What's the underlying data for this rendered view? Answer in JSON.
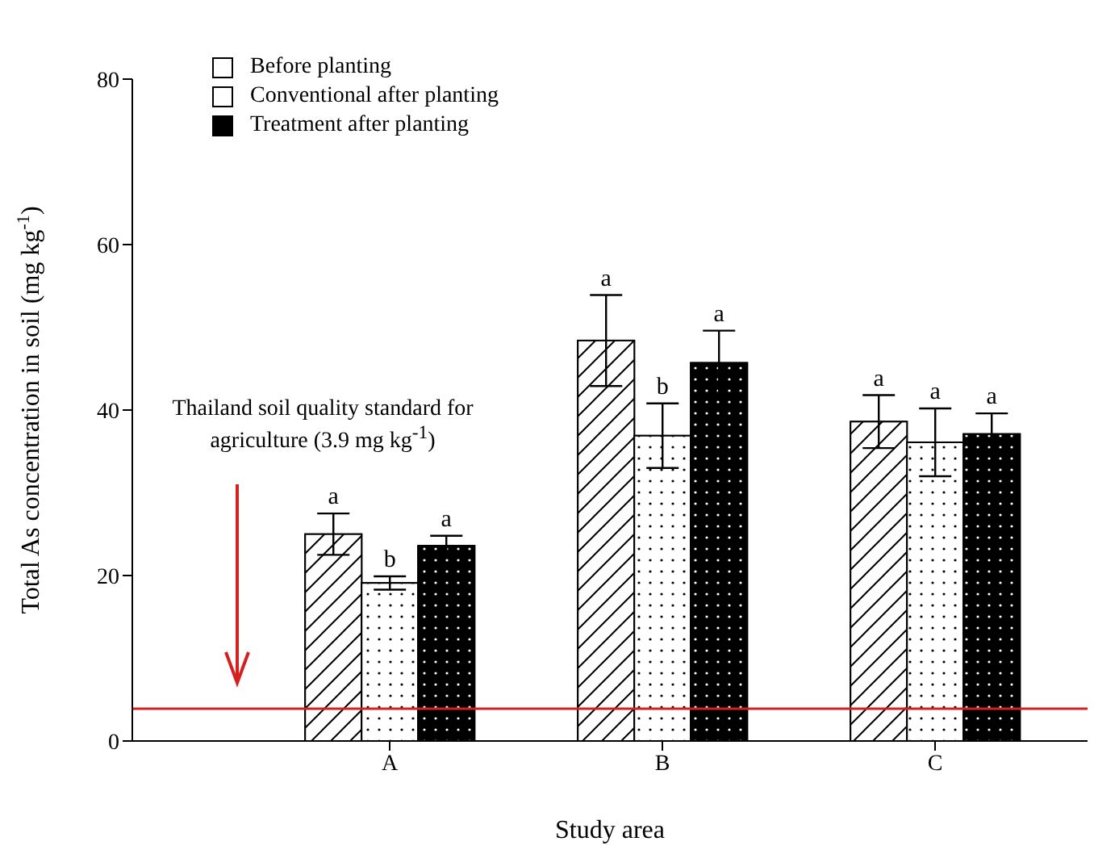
{
  "chart_data": {
    "type": "bar",
    "xlabel": "Study area",
    "ylabel": "Total As concentration in soil (mg kg$^{-1}$)",
    "categories": [
      "A",
      "B",
      "C"
    ],
    "series": [
      {
        "name": "Before planting",
        "color": "#ffffff",
        "values": [
          25.0,
          48.4,
          38.6
        ],
        "errors": [
          2.5,
          5.5,
          3.2
        ],
        "value_labels": [
          "a",
          "a",
          "a"
        ]
      },
      {
        "name": "Conventional after planting",
        "color": "#ffffff",
        "values": [
          19.1,
          36.9,
          36.1
        ],
        "errors": [
          0.8,
          3.9,
          4.1
        ],
        "value_labels": [
          "b",
          "b",
          "a"
        ]
      },
      {
        "name": "Treatment after planting",
        "color": "#000000",
        "values": [
          23.6,
          45.7,
          37.1
        ],
        "errors": [
          1.2,
          3.9,
          2.5
        ],
        "value_labels": [
          "a",
          "a",
          "a"
        ]
      }
    ],
    "ylim": [
      0,
      80
    ],
    "yticks": [
      0,
      20,
      40,
      60,
      80
    ],
    "grid": false,
    "legend": "top left",
    "ref_lines": [
      {
        "axis": "y",
        "value": 3.9,
        "color": "#d62020"
      }
    ],
    "annotations": [
      "Thailand soil quality standard for agriculture (3.9 mg kg$^{-1}$)"
    ]
  }
}
